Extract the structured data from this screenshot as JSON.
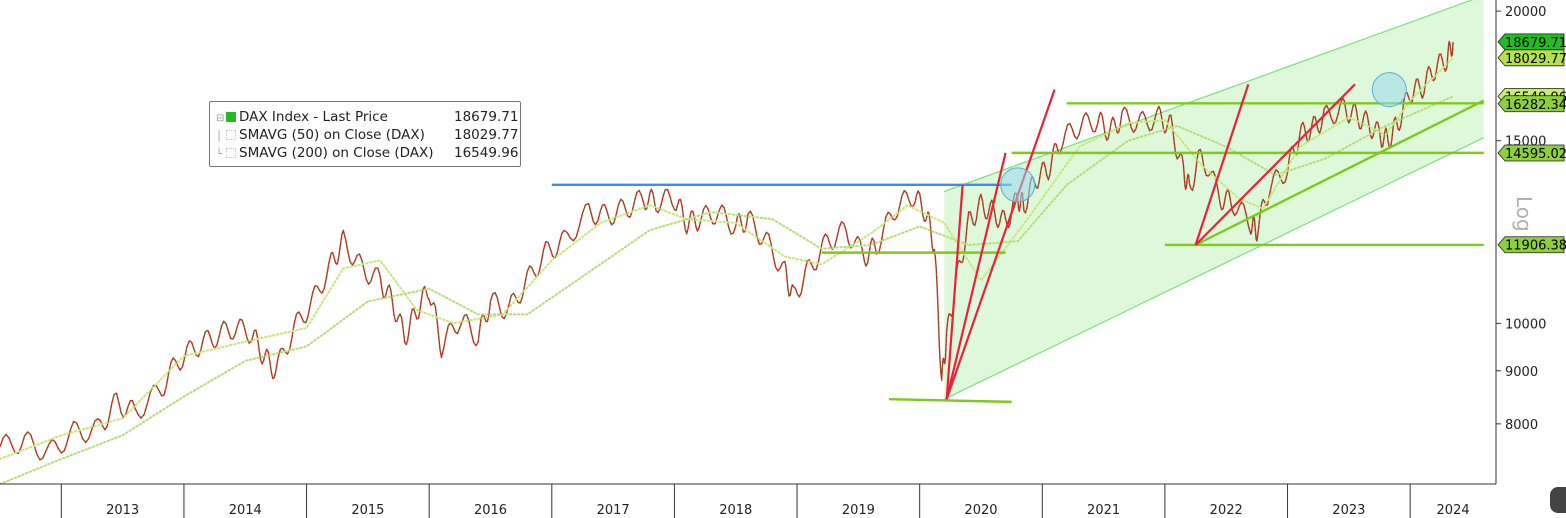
{
  "chart_data": {
    "type": "line",
    "title": "",
    "xlabel": "",
    "ylabel": "",
    "y_scale": "log",
    "y_axis_label": "Log",
    "ylim": [
      7000,
      20500
    ],
    "xlim": [
      2012.5,
      2024.7
    ],
    "y_ticks": [
      8000,
      9000,
      10000,
      15000,
      20000
    ],
    "x_tick_labels": [
      "2013",
      "2014",
      "2015",
      "2016",
      "2017",
      "2018",
      "2019",
      "2020",
      "2021",
      "2022",
      "2023",
      "2024"
    ],
    "grid": false,
    "legend_position": "top-left",
    "legend": [
      {
        "label": "DAX Index - Last Price",
        "value": "18679.71",
        "color": "#22bb22"
      },
      {
        "label": "SMAVG (50)  on Close (DAX)",
        "value": "18029.77",
        "color": "#c6e87a"
      },
      {
        "label": "SMAVG (200)  on Close (DAX)",
        "value": "16549.96",
        "color": "#b7dc7a"
      }
    ],
    "price_tags": [
      {
        "text": "18679.71",
        "value": 18679.71,
        "color": "#22bb22"
      },
      {
        "text": "18029.77",
        "value": 18029.77,
        "color": "#b6e04e"
      },
      {
        "text": "16549.96",
        "value": 16549.96,
        "color": "#c9ee6e"
      },
      {
        "text": "16282.34",
        "value": 16282.34,
        "color": "#8ecf3c"
      },
      {
        "text": "14595.02",
        "value": 14595.02,
        "color": "#8ecf3c"
      },
      {
        "text": "11906.38",
        "value": 11906.38,
        "color": "#8ecf3c"
      }
    ],
    "series": [
      {
        "name": "DAX Index - Last Price",
        "color": "#d22020",
        "x": [
          2012.5,
          2012.7,
          2012.9,
          2013.1,
          2013.3,
          2013.45,
          2013.6,
          2013.8,
          2013.95,
          2014.1,
          2014.25,
          2014.4,
          2014.55,
          2014.65,
          2014.75,
          2014.9,
          2015.05,
          2015.2,
          2015.3,
          2015.45,
          2015.6,
          2015.7,
          2015.8,
          2015.9,
          2016.0,
          2016.1,
          2016.25,
          2016.4,
          2016.5,
          2016.65,
          2016.8,
          2016.95,
          2017.1,
          2017.3,
          2017.45,
          2017.6,
          2017.75,
          2017.85,
          2018.0,
          2018.1,
          2018.2,
          2018.35,
          2018.5,
          2018.6,
          2018.75,
          2018.9,
          2018.97,
          2019.1,
          2019.25,
          2019.4,
          2019.55,
          2019.65,
          2019.8,
          2019.95,
          2020.05,
          2020.12,
          2020.18,
          2020.22,
          2020.3,
          2020.4,
          2020.5,
          2020.6,
          2020.7,
          2020.8,
          2020.85,
          2020.95,
          2021.05,
          2021.15,
          2021.3,
          2021.45,
          2021.55,
          2021.65,
          2021.8,
          2021.95,
          2022.05,
          2022.15,
          2022.2,
          2022.3,
          2022.45,
          2022.55,
          2022.7,
          2022.75,
          2022.85,
          2023.0,
          2023.1,
          2023.2,
          2023.3,
          2023.45,
          2023.55,
          2023.65,
          2023.75,
          2023.82,
          2023.9,
          2024.0,
          2024.1,
          2024.2,
          2024.3,
          2024.35
        ],
        "values": [
          7600,
          7700,
          7500,
          7850,
          7900,
          8400,
          8200,
          8600,
          9200,
          9500,
          9700,
          9900,
          9800,
          9300,
          9000,
          9900,
          10500,
          11400,
          12000,
          11300,
          11000,
          10500,
          9700,
          10300,
          10800,
          9500,
          10100,
          9700,
          10500,
          10300,
          11000,
          11700,
          12000,
          12800,
          12700,
          12900,
          13200,
          13100,
          13200,
          12500,
          12600,
          12800,
          12400,
          12600,
          12000,
          11200,
          10600,
          11300,
          12000,
          12300,
          11600,
          11900,
          12900,
          13300,
          12800,
          11900,
          8800,
          9700,
          11000,
          12500,
          13000,
          12800,
          12500,
          13200,
          13000,
          13800,
          14100,
          15000,
          15500,
          15700,
          15300,
          15800,
          15600,
          15800,
          15500,
          14000,
          13500,
          14600,
          13200,
          13100,
          12500,
          12300,
          13500,
          14100,
          15200,
          15400,
          15800,
          16100,
          15900,
          15600,
          15200,
          15000,
          15600,
          16700,
          16900,
          17600,
          18000,
          18680
        ]
      },
      {
        "name": "SMAVG (50)  on Close (DAX)",
        "color": "#c6e87a",
        "x": [
          2012.5,
          2013.0,
          2013.5,
          2014.0,
          2014.5,
          2015.0,
          2015.3,
          2015.6,
          2015.9,
          2016.2,
          2016.6,
          2017.0,
          2017.4,
          2017.8,
          2018.1,
          2018.5,
          2018.9,
          2019.2,
          2019.6,
          2019.9,
          2020.2,
          2020.5,
          2020.9,
          2021.3,
          2021.7,
          2022.0,
          2022.3,
          2022.6,
          2022.8,
          2023.1,
          2023.5,
          2023.8,
          2024.0,
          2024.35
        ],
        "values": [
          7400,
          7800,
          8100,
          9300,
          9600,
          9900,
          11300,
          11500,
          10300,
          10000,
          10200,
          11500,
          12500,
          13000,
          12600,
          12500,
          11600,
          11400,
          12200,
          13000,
          12500,
          11000,
          12700,
          14800,
          15600,
          15700,
          14200,
          13200,
          12900,
          14800,
          15800,
          15200,
          16400,
          18030
        ]
      },
      {
        "name": "SMAVG (200)  on Close (DAX)",
        "color": "#b7dc7a",
        "x": [
          2012.5,
          2013.0,
          2013.5,
          2014.0,
          2014.5,
          2015.0,
          2015.5,
          2016.0,
          2016.4,
          2016.8,
          2017.3,
          2017.8,
          2018.3,
          2018.8,
          2019.2,
          2019.6,
          2020.0,
          2020.4,
          2020.8,
          2021.2,
          2021.7,
          2022.1,
          2022.5,
          2022.9,
          2023.3,
          2023.8,
          2024.35
        ],
        "values": [
          7000,
          7400,
          7800,
          8500,
          9200,
          9500,
          10500,
          10800,
          10200,
          10200,
          11200,
          12300,
          12800,
          12600,
          11800,
          11900,
          12400,
          11900,
          12000,
          13600,
          15000,
          15500,
          14800,
          13900,
          14400,
          15500,
          16550
        ]
      }
    ],
    "trendlines": [
      {
        "name": "resistance-2018",
        "color": "#3d8ee8",
        "x": [
          2017.0,
          2020.75
        ],
        "values": [
          13600,
          13600
        ]
      },
      {
        "name": "support-2019",
        "color": "#7ec820",
        "x": [
          2019.2,
          2020.7
        ],
        "values": [
          11700,
          11700
        ]
      },
      {
        "name": "covid-low",
        "color": "#7ec820",
        "x": [
          2019.75,
          2020.75
        ],
        "values": [
          8450,
          8400
        ]
      },
      {
        "name": "range-top",
        "color": "#7ec820",
        "x": [
          2021.2,
          2024.6
        ],
        "values": [
          16300,
          16300
        ]
      },
      {
        "name": "range-mid",
        "color": "#7ec820",
        "x": [
          2020.75,
          2024.6
        ],
        "values": [
          14600,
          14600
        ]
      },
      {
        "name": "range-low",
        "color": "#7ec820",
        "x": [
          2022.0,
          2024.6
        ],
        "values": [
          11900,
          11900
        ]
      },
      {
        "name": "uptrend-2022",
        "color": "#7ec820",
        "x": [
          2022.25,
          2024.6
        ],
        "values": [
          11900,
          16400
        ]
      }
    ],
    "channel": {
      "color": "#7ee07e",
      "fill": "#d8f8d4",
      "upper": {
        "x": [
          2020.2,
          2024.6
        ],
        "values": [
          13400,
          20700
        ]
      },
      "lower": {
        "x": [
          2020.2,
          2024.6
        ],
        "values": [
          8450,
          15100
        ]
      }
    },
    "fans": [
      {
        "x": [
          2020.22,
          2020.35
        ],
        "values": [
          8450,
          13600
        ]
      },
      {
        "x": [
          2020.22,
          2020.7
        ],
        "values": [
          8450,
          14600
        ]
      },
      {
        "x": [
          2020.22,
          2021.1
        ],
        "values": [
          8450,
          16800
        ]
      },
      {
        "x": [
          2022.25,
          2022.68
        ],
        "values": [
          11900,
          17000
        ]
      },
      {
        "x": [
          2022.25,
          2023.55
        ],
        "values": [
          11900,
          17000
        ]
      }
    ],
    "highlights": [
      {
        "x": 2020.8,
        "value": 13600
      },
      {
        "x": 2023.83,
        "value": 16800
      }
    ]
  }
}
